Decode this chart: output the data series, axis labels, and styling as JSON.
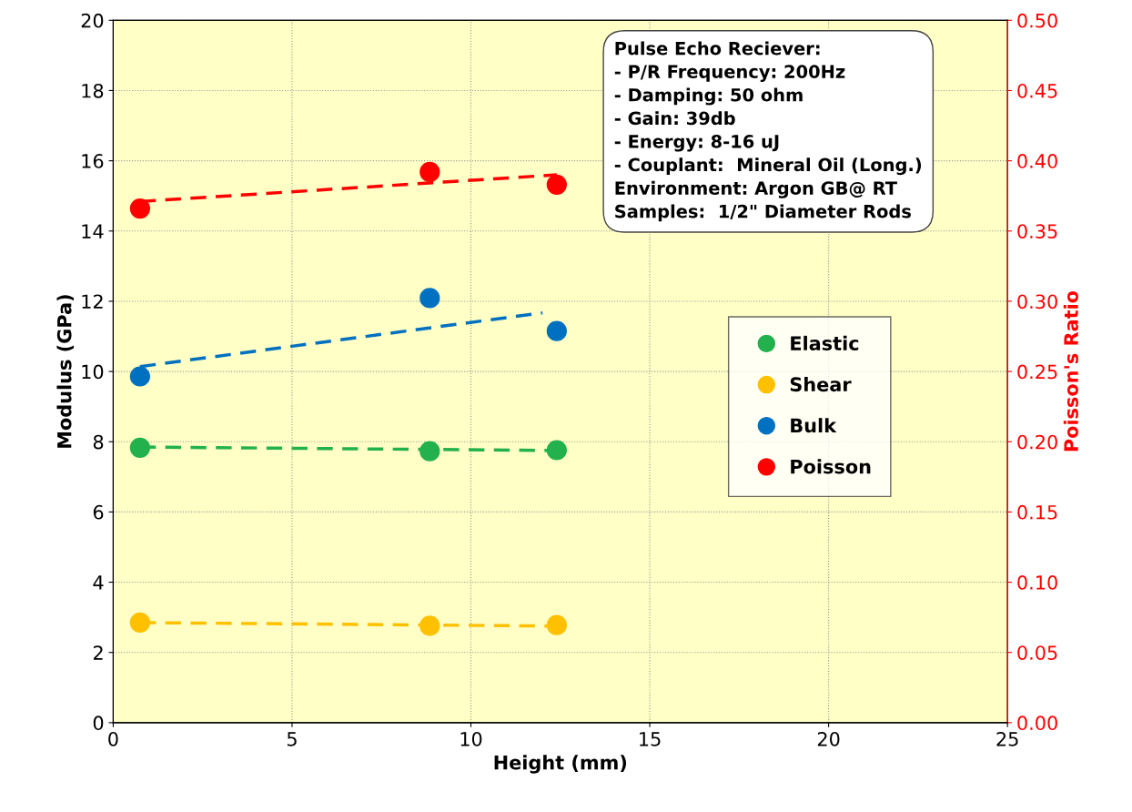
{
  "chart_data": {
    "type": "scatter",
    "xlabel": "Height (mm)",
    "ylabel": "Modulus (GPa)",
    "y2label": "Poisson's Ratio",
    "xlim": [
      0,
      25
    ],
    "xticks": [
      0,
      5,
      10,
      15,
      20,
      25
    ],
    "ylim": [
      0,
      20
    ],
    "yticks": [
      0,
      2,
      4,
      6,
      8,
      10,
      12,
      14,
      16,
      18,
      20
    ],
    "y2lim": [
      0,
      0.5
    ],
    "y2ticks": [
      {
        "value": 0,
        "label": "0.00"
      },
      {
        "value": 0.05,
        "label": "0.05"
      },
      {
        "value": 0.1,
        "label": "0.10"
      },
      {
        "value": 0.15,
        "label": "0.15"
      },
      {
        "value": 0.2,
        "label": "0.20"
      },
      {
        "value": 0.25,
        "label": "0.25"
      },
      {
        "value": 0.3,
        "label": "0.30"
      },
      {
        "value": 0.35,
        "label": "0.35"
      },
      {
        "value": 0.4,
        "label": "0.40"
      },
      {
        "value": 0.45,
        "label": "0.45"
      },
      {
        "value": 0.5,
        "label": "0.50"
      }
    ],
    "grid": true,
    "legend": "center right",
    "marker": "circle",
    "series": [
      {
        "name": "Elastic",
        "color": "#22b14c",
        "x": [
          0.75,
          8.85,
          12.4
        ],
        "values": [
          7.83,
          7.73,
          7.76
        ]
      },
      {
        "name": "Shear",
        "color": "#ffc000",
        "x": [
          0.75,
          8.85,
          12.4
        ],
        "values": [
          2.85,
          2.76,
          2.78
        ]
      },
      {
        "name": "Bulk",
        "color": "#0070c0",
        "x": [
          0.75,
          8.85,
          12.4
        ],
        "values": [
          9.86,
          12.09,
          11.15
        ]
      },
      {
        "name": "Poisson",
        "color": "#ff0000",
        "axis": "y2",
        "x": [
          0.75,
          8.85,
          12.4
        ],
        "values": [
          0.366,
          0.392,
          0.383
        ]
      },
      {
        "type": "line",
        "line_style": "dashed",
        "marker": "none",
        "color": "#22b14c",
        "x": [
          0.75,
          12.4
        ],
        "values": [
          7.85,
          7.75
        ]
      },
      {
        "type": "line",
        "line_style": "dashed",
        "marker": "none",
        "color": "#ffc000",
        "x": [
          0.75,
          12.4
        ],
        "values": [
          2.85,
          2.75
        ]
      },
      {
        "type": "line",
        "line_style": "dashed",
        "marker": "none",
        "color": "#0070c0",
        "x": [
          0.75,
          12.0
        ],
        "values": [
          10.14,
          11.67
        ]
      },
      {
        "type": "line",
        "line_style": "dashed",
        "marker": "none",
        "color": "#ff0000",
        "axis": "y2",
        "x": [
          0.75,
          12.4
        ],
        "values": [
          0.371,
          0.39
        ]
      }
    ],
    "annotations": [
      "Pulse Echo Reciever:\n- P/R Frequency: 200Hz\n- Damping: 50 ohm\n- Gain: 39db\n- Energy: 8-16 uJ\n- Couplant:  Mineral Oil (Long.)\nEnvironment: Argon GB@ RT\nSamples:  1/2\" Diameter Rods"
    ]
  }
}
